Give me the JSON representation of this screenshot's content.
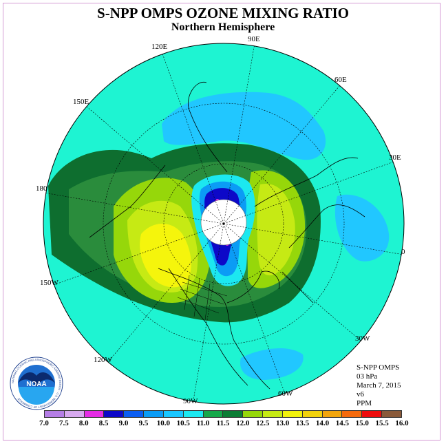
{
  "title": "S-NPP OMPS OZONE MIXING RATIO",
  "subtitle": "Northern Hemisphere",
  "longitude_labels": [
    "90E",
    "60E",
    "30E",
    "0",
    "30W",
    "60W",
    "90W",
    "120W",
    "150W",
    "180",
    "150E",
    "120E"
  ],
  "info": {
    "instrument": "S-NPP OMPS",
    "level": "03 hPa",
    "date": "March 7, 2015",
    "version": "v6",
    "units": "PPM"
  },
  "logo": {
    "text": "NOAA",
    "ring_text": "NATIONAL OCEANIC AND ATMOSPHERIC ADMINISTRATION · U.S. DEPARTMENT OF COMMERCE"
  },
  "colorbar": {
    "ticks": [
      "7.0",
      "7.5",
      "8.0",
      "8.5",
      "9.0",
      "9.5",
      "10.0",
      "10.5",
      "11.0",
      "11.5",
      "12.0",
      "12.5",
      "13.0",
      "13.5",
      "14.0",
      "14.5",
      "15.0",
      "15.5",
      "16.0"
    ],
    "colors": [
      "#b57ee6",
      "#d7a9ef",
      "#e52ce5",
      "#0d08c8",
      "#0b5ef2",
      "#0b9cf5",
      "#19c6ff",
      "#1ce8f0",
      "#16a84a",
      "#0c7d35",
      "#96d70a",
      "#c6ea14",
      "#f2f20c",
      "#f2d20c",
      "#f2a50c",
      "#f56a0c",
      "#ee0c0c",
      "#8a5a3a"
    ]
  },
  "colors": {
    "background_field": "#1ef4d2",
    "mid_band": "#2a8c3c",
    "dark_band": "#0e6e2f",
    "high_ozone": "#f5f50c",
    "low_ozone": "#21c7ff",
    "pole_fill": "#ffffff"
  }
}
